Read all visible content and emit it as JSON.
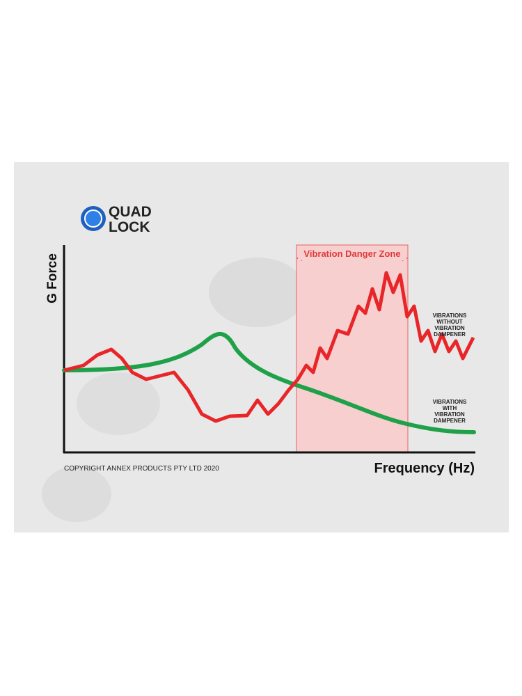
{
  "logo": {
    "line1": "QUAD",
    "line2": "LOCK"
  },
  "y_axis_label": "G Force",
  "x_axis_label": "Frequency (Hz)",
  "zone_label": "Vibration Danger Zone",
  "legend_without": [
    "VIBRATIONS",
    "WITHOUT",
    "VIBRATION",
    "DAMPENER"
  ],
  "legend_with": [
    "VIBRATIONS",
    "WITH",
    "VIBRATION",
    "DAMPENER"
  ],
  "copyright": "COPYRIGHT ANNEX PRODUCTS PTY LTD 2020"
}
